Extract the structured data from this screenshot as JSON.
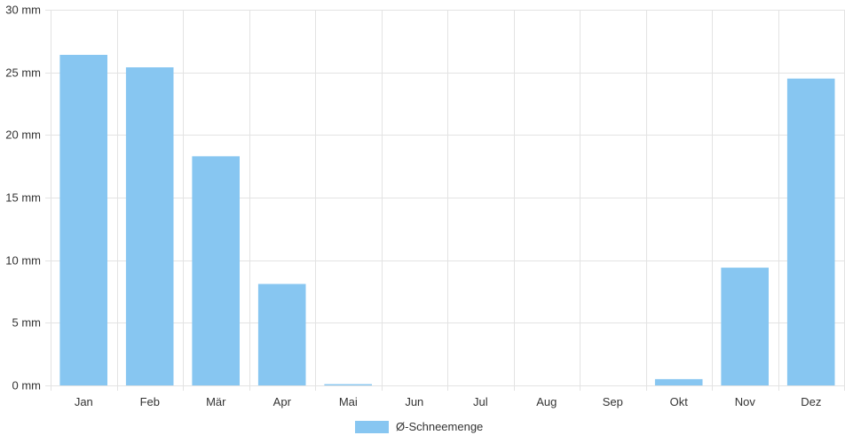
{
  "chart_data": {
    "type": "bar",
    "categories": [
      "Jan",
      "Feb",
      "Mär",
      "Apr",
      "Mai",
      "Jun",
      "Jul",
      "Aug",
      "Sep",
      "Okt",
      "Nov",
      "Dez"
    ],
    "series": [
      {
        "name": "Ø-Schneemenge",
        "values": [
          26.4,
          25.4,
          18.3,
          8.1,
          0.1,
          0,
          0,
          0,
          0,
          0.5,
          9.4,
          24.5
        ],
        "color": "#87c6f1"
      }
    ],
    "ylim": [
      0,
      30
    ],
    "yticks": [
      "0 mm",
      "5 mm",
      "10 mm",
      "15 mm",
      "20 mm",
      "25 mm",
      "30 mm"
    ],
    "ytick_values": [
      0,
      5,
      10,
      15,
      20,
      25,
      30
    ],
    "grid": true,
    "legend_position": "bottom-center"
  }
}
